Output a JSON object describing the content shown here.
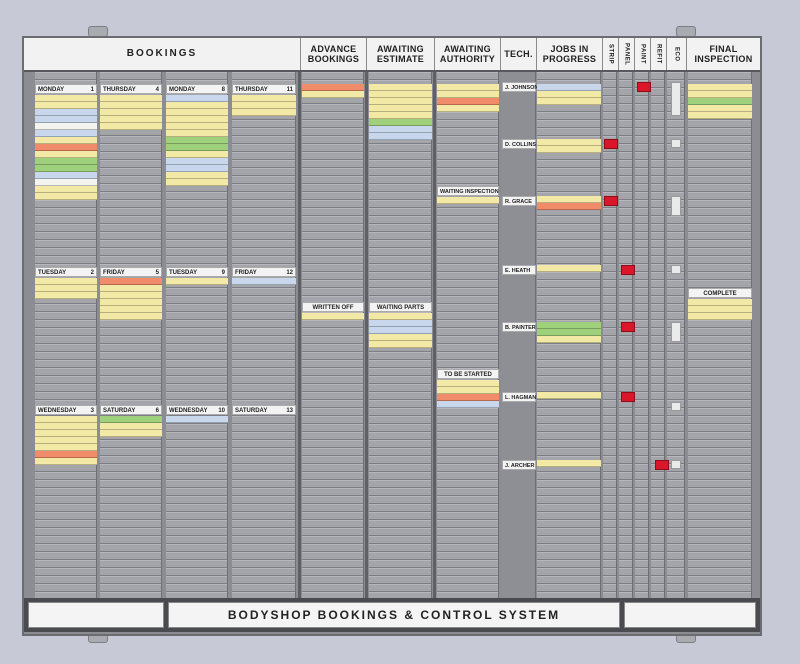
{
  "header": {
    "bookings": "BOOKINGS",
    "advance": "ADVANCE BOOKINGS",
    "awaiting_estimate": "AWAITING ESTIMATE",
    "awaiting_authority": "AWAITING AUTHORITY",
    "tech": "TECH.",
    "jobs_in_progress": "JOBS IN PROGRESS",
    "strip": "STRIP",
    "panel": "PANEL",
    "paint": "PAINT",
    "refit": "REFIT",
    "eco": "ECO",
    "final_inspection": "FINAL INSPECTION"
  },
  "days": [
    {
      "day": "MONDAY",
      "num": "1"
    },
    {
      "day": "THURSDAY",
      "num": "4"
    },
    {
      "day": "MONDAY",
      "num": "8"
    },
    {
      "day": "THURSDAY",
      "num": "11"
    },
    {
      "day": "TUESDAY",
      "num": "2"
    },
    {
      "day": "FRIDAY",
      "num": "5"
    },
    {
      "day": "TUESDAY",
      "num": "9"
    },
    {
      "day": "FRIDAY",
      "num": "12"
    },
    {
      "day": "WEDNESDAY",
      "num": "3"
    },
    {
      "day": "SATURDAY",
      "num": "6"
    },
    {
      "day": "WEDNESDAY",
      "num": "10"
    },
    {
      "day": "SATURDAY",
      "num": "13"
    }
  ],
  "section_labels": {
    "written_off": "WRITTEN OFF",
    "waiting_parts": "WAITING PARTS",
    "waiting_inspection": "WAITING INSPECTION",
    "to_be_started": "TO BE STARTED",
    "complete": "COMPLETE"
  },
  "technicians": [
    "J. JOHNSON",
    "D. COLLINS",
    "R. GRACE",
    "E. HEATH",
    "B. PAINTER",
    "L. HAGMAN",
    "J. ARCHER"
  ],
  "footer": {
    "title": "BODYSHOP BOOKINGS & CONTROL SYSTEM"
  },
  "colors": {
    "yellow_card": "#f3e9a6",
    "blue_card": "#c9d7ec",
    "green_card": "#9fd17d",
    "orange_card": "#f08c6a",
    "red_tag": "#d9162a",
    "white_card": "#f3f3ef"
  }
}
